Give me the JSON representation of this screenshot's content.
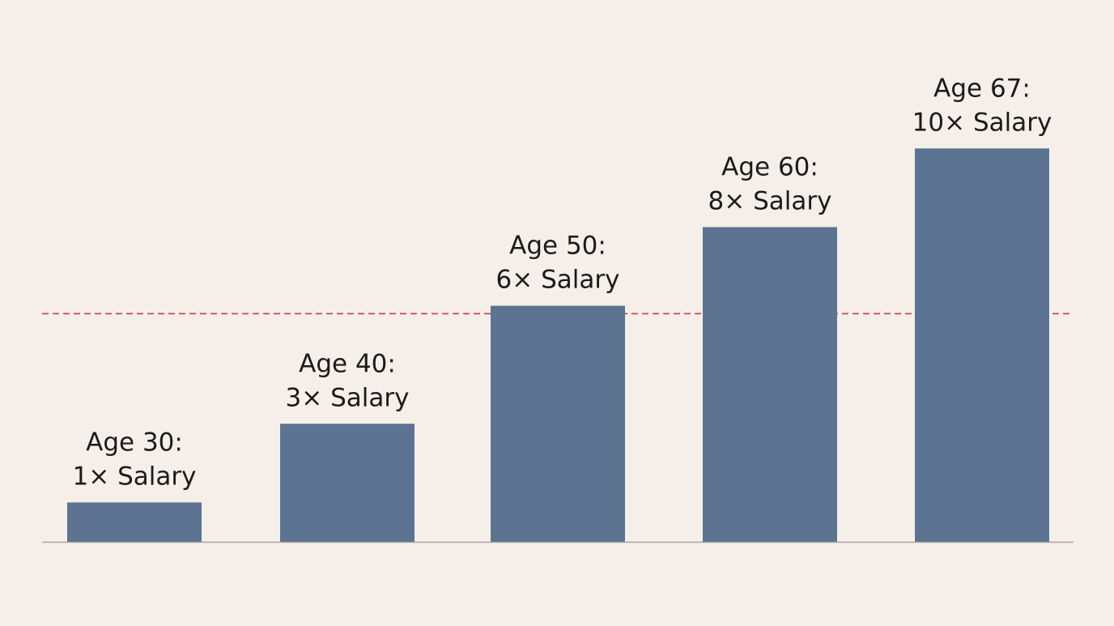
{
  "chart_data": {
    "type": "bar",
    "categories": [
      "Age 30",
      "Age 40",
      "Age 50",
      "Age 60",
      "Age 67"
    ],
    "values": [
      1,
      3,
      6,
      8,
      10
    ],
    "data_labels": [
      [
        "Age 30:",
        "1× Salary"
      ],
      [
        "Age 40:",
        "3× Salary"
      ],
      [
        "Age 50:",
        "6× Salary"
      ],
      [
        "Age 60:",
        "8× Salary"
      ],
      [
        "Age 67:",
        "10× Salary"
      ]
    ],
    "title": "",
    "xlabel": "",
    "ylabel": "",
    "ylim": [
      0,
      11.55
    ],
    "reference_line": {
      "value": 5.8,
      "style": "dashed"
    },
    "grid": false,
    "legend": "none"
  },
  "colors": {
    "background": "#f6efe9",
    "bar": "#5c7491",
    "reference_line": "#cc3b43",
    "baseline": "#a9a5a2",
    "text": "#1b1b1b"
  }
}
